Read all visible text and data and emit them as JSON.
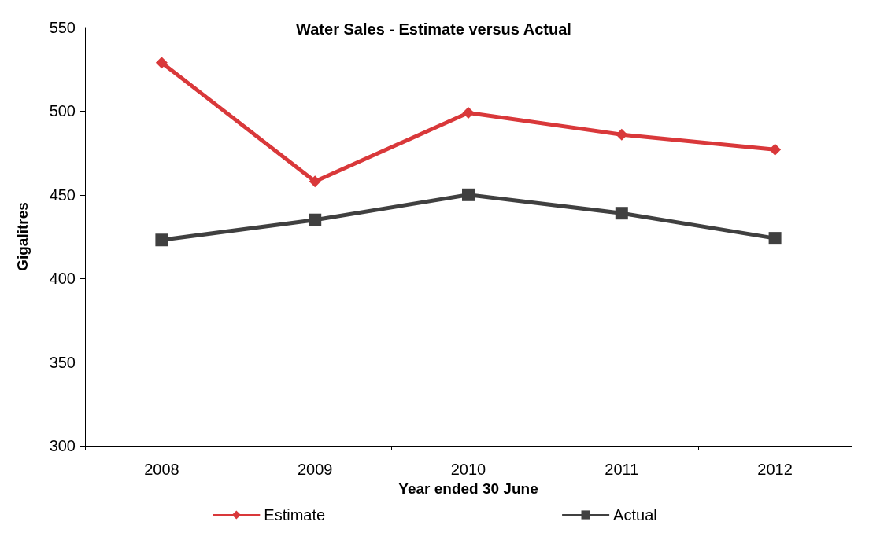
{
  "chart_data": {
    "type": "line",
    "title": "Water Sales - Estimate versus Actual",
    "xlabel": "Year ended 30 June",
    "ylabel": "Gigalitres",
    "categories": [
      "2008",
      "2009",
      "2010",
      "2011",
      "2012"
    ],
    "series": [
      {
        "name": "Estimate",
        "color": "#d9383a",
        "marker": "diamond",
        "values": [
          529,
          458,
          499,
          486,
          477
        ]
      },
      {
        "name": "Actual",
        "color": "#404040",
        "marker": "square",
        "values": [
          423,
          435,
          450,
          439,
          424
        ]
      }
    ],
    "ylim": [
      300,
      550
    ],
    "yticks": [
      300,
      350,
      400,
      450,
      500,
      550
    ],
    "grid": false,
    "legend": "bottom",
    "line_style": "solid"
  }
}
